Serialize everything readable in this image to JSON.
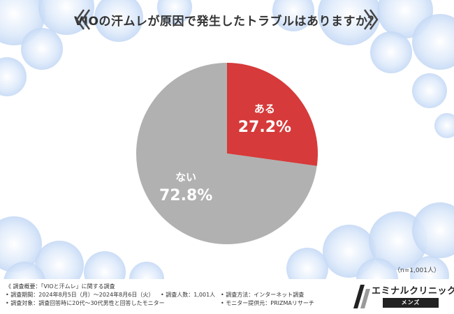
{
  "title": "VIOの汗ムレが原因で発生したトラブルはありますか？",
  "chart_data": {
    "type": "pie",
    "categories": [
      "ある",
      "ない"
    ],
    "values": [
      27.2,
      72.8
    ],
    "value_labels": [
      "27.2%",
      "72.8%"
    ],
    "colors": [
      "#d63a3a",
      "#b1b1b1"
    ]
  },
  "sample_note": "（n=1,001人）",
  "survey": {
    "heading": "《 調査概要：「VIOと汗ムレ」に関する調査",
    "period": "• 調査期間：2024年8月5日（月）～2024年8月6日（火）",
    "count": "• 調査人数：1,001人",
    "method": "• 調査方法：インターネット調査",
    "target": "• 調査対象：調査回答時に20代～30代男性と回答したモニター",
    "provider": "• モニター提供元：PRIZMAリサーチ"
  },
  "logo": {
    "name": "エミナルクリニック",
    "sub": "メンズ"
  }
}
